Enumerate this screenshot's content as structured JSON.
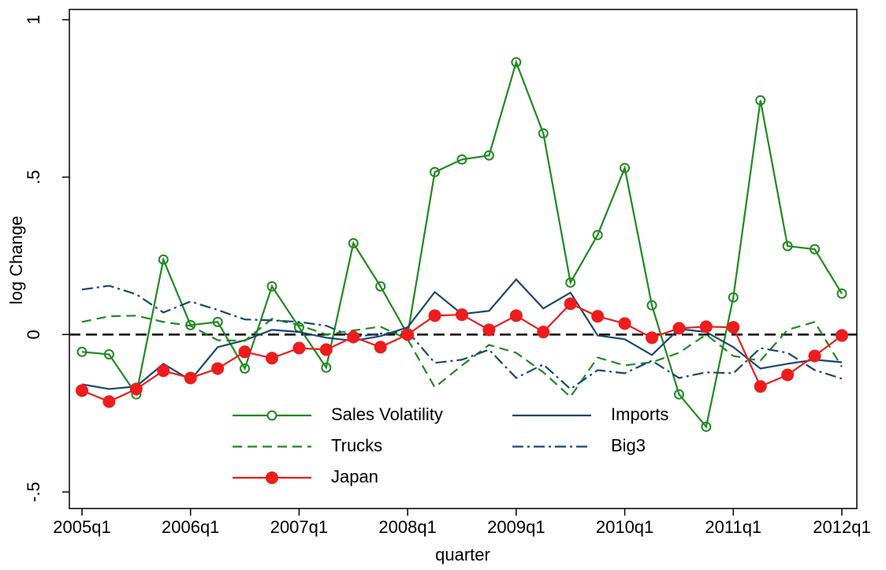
{
  "chart_data": {
    "type": "line",
    "x_label": "quarter",
    "y_label": "log Change",
    "categories": [
      "2005q1",
      null,
      null,
      null,
      "2006q1",
      null,
      null,
      null,
      "2007q1",
      null,
      null,
      null,
      "2008q1",
      null,
      null,
      null,
      "2009q1",
      null,
      null,
      null,
      "2010q1",
      null,
      null,
      null,
      "2011q1",
      null,
      null,
      null,
      "2012q1"
    ],
    "ylim": [
      -0.5,
      1
    ],
    "yticks": [
      {
        "value": -0.5,
        "label": "-.5"
      },
      0,
      {
        "value": 0.5,
        "label": ".5"
      },
      1
    ],
    "hline": 0,
    "grid": false,
    "legend": "bottom",
    "series": [
      {
        "name": "Sales Volatility",
        "color": "#1f8a1f",
        "style": "solid",
        "marker": "hollow-circle",
        "values": [
          -0.055,
          -0.063,
          -0.19,
          0.238,
          0.03,
          0.04,
          -0.108,
          0.153,
          0.023,
          -0.105,
          0.29,
          0.153,
          0.0,
          0.516,
          0.556,
          0.569,
          0.865,
          0.639,
          0.165,
          0.316,
          0.529,
          0.093,
          -0.19,
          -0.293,
          0.118,
          0.744,
          0.281,
          0.271,
          0.13
        ]
      },
      {
        "name": "Imports",
        "color": "#1a476f",
        "style": "solid",
        "marker": null,
        "values": [
          -0.158,
          -0.173,
          -0.165,
          -0.093,
          -0.145,
          -0.04,
          -0.018,
          0.015,
          0.008,
          -0.01,
          -0.02,
          -0.005,
          0.023,
          0.135,
          0.065,
          0.075,
          0.175,
          0.083,
          0.133,
          -0.003,
          -0.015,
          -0.065,
          0.018,
          0.008,
          -0.04,
          -0.108,
          -0.093,
          -0.08,
          -0.088
        ]
      },
      {
        "name": "Trucks",
        "color": "#1f8a1f",
        "style": "dash",
        "marker": null,
        "values": [
          0.04,
          0.058,
          0.06,
          0.04,
          0.028,
          -0.018,
          -0.02,
          0.05,
          0.03,
          0,
          0.013,
          0.025,
          -0.015,
          -0.168,
          -0.098,
          -0.033,
          -0.058,
          -0.12,
          -0.198,
          -0.073,
          -0.098,
          -0.088,
          -0.058,
          0,
          -0.068,
          -0.083,
          0.015,
          0.04,
          -0.103
        ]
      },
      {
        "name": "Big3",
        "color": "#1a476f",
        "style": "dashdot",
        "marker": null,
        "values": [
          0.143,
          0.155,
          0.128,
          0.07,
          0.105,
          0.078,
          0.048,
          0.045,
          0.04,
          0.028,
          -0.008,
          0.003,
          0.01,
          -0.09,
          -0.08,
          -0.048,
          -0.138,
          -0.095,
          -0.173,
          -0.113,
          -0.123,
          -0.083,
          -0.138,
          -0.12,
          -0.123,
          -0.043,
          -0.058,
          -0.113,
          -0.14
        ]
      },
      {
        "name": "Japan",
        "color": "#ee1c1c",
        "style": "solid",
        "marker": "filled-circle",
        "values": [
          -0.178,
          -0.213,
          -0.173,
          -0.115,
          -0.138,
          -0.108,
          -0.055,
          -0.075,
          -0.043,
          -0.048,
          -0.008,
          -0.04,
          0.0,
          0.06,
          0.063,
          0.015,
          0.06,
          0.008,
          0.098,
          0.058,
          0.035,
          -0.01,
          0.02,
          0.025,
          0.023,
          -0.165,
          -0.128,
          -0.068,
          -0.003
        ]
      }
    ]
  }
}
